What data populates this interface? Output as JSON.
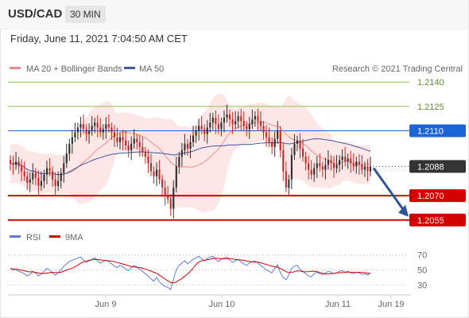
{
  "header": {
    "pair": "USD/CAD",
    "interval": "30 MIN",
    "timestamp": "Friday, June 11, 2021 7:04:50 AM CET"
  },
  "legend": {
    "ma20": "MA 20 + Bollinger Bands",
    "ma50": "MA 50",
    "credit": "Research © 2021 Trading Central"
  },
  "colors": {
    "ma20": "#f08a8a",
    "ma50": "#3b5aa0",
    "support": "#d40000",
    "resistance": "#8cc63f",
    "pivot": "#1a66d9",
    "last": "#333333",
    "candle_up": "#2f2f2f",
    "candle_down": "#c62828",
    "band": "#fde3e3",
    "rsi": "#5b7fd6",
    "rsi_ma": "#d40000",
    "arrow": "#2f5597"
  },
  "chart_data": [
    {
      "type": "candlestick",
      "title": "USD/CAD",
      "interval": "30 MIN",
      "ylim": [
        1.205,
        1.2145
      ],
      "x_ticks": [
        "Jun 9",
        "Jun 10",
        "Jun 11",
        "Jun 19"
      ],
      "close": [
        1.209,
        1.2089,
        1.2091,
        1.2088,
        1.2085,
        1.2082,
        1.2078,
        1.208,
        1.2084,
        1.2081,
        1.2076,
        1.2079,
        1.2083,
        1.2087,
        1.2085,
        1.208,
        1.2076,
        1.2079,
        1.2084,
        1.209,
        1.2096,
        1.2102,
        1.2106,
        1.2109,
        1.2112,
        1.2114,
        1.2111,
        1.2108,
        1.211,
        1.2113,
        1.2115,
        1.2112,
        1.2109,
        1.2111,
        1.2114,
        1.2112,
        1.2109,
        1.2106,
        1.2103,
        1.2106,
        1.2104,
        1.2101,
        1.2098,
        1.2102,
        1.2105,
        1.2103,
        1.21,
        1.2097,
        1.2094,
        1.209,
        1.2085,
        1.2082,
        1.2086,
        1.208,
        1.2075,
        1.207,
        1.2068,
        1.2062,
        1.2075,
        1.2088,
        1.2094,
        1.2098,
        1.2102,
        1.2099,
        1.2103,
        1.2107,
        1.211,
        1.2113,
        1.2111,
        1.2108,
        1.2112,
        1.2115,
        1.2118,
        1.2114,
        1.2111,
        1.2115,
        1.2118,
        1.212,
        1.2117,
        1.2114,
        1.2116,
        1.2119,
        1.2116,
        1.2113,
        1.2111,
        1.2114,
        1.2117,
        1.2119,
        1.2116,
        1.2113,
        1.2109,
        1.2106,
        1.2103,
        1.21,
        1.2105,
        1.211,
        1.2098,
        1.2085,
        1.2075,
        1.208,
        1.2095,
        1.2102,
        1.2104,
        1.2099,
        1.2094,
        1.209,
        1.2086,
        1.2083,
        1.2087,
        1.209,
        1.2088,
        1.2086,
        1.2089,
        1.2092,
        1.209,
        1.2087,
        1.2089,
        1.2092,
        1.2094,
        1.2091,
        1.2093,
        1.209,
        1.2088,
        1.2091,
        1.2089,
        1.2086,
        1.2088,
        1.2085,
        1.2088
      ],
      "series": [
        {
          "name": "MA 20 + Bollinger Bands"
        },
        {
          "name": "MA 50"
        }
      ],
      "levels": [
        {
          "value": 1.214,
          "label": "1.2140",
          "kind": "resistance"
        },
        {
          "value": 1.2125,
          "label": "1.2125",
          "kind": "resistance"
        },
        {
          "value": 1.211,
          "label": "1.2110",
          "kind": "pivot"
        },
        {
          "value": 1.2088,
          "label": "1.2088",
          "kind": "last"
        },
        {
          "value": 1.207,
          "label": "1.2070",
          "kind": "support"
        },
        {
          "value": 1.2055,
          "label": "1.2055",
          "kind": "support"
        }
      ],
      "projection": {
        "from": 1.2088,
        "to": 1.2058,
        "direction": "down"
      },
      "grid": false,
      "legend": "top-left"
    },
    {
      "type": "line",
      "series": [
        {
          "name": "RSI"
        },
        {
          "name": "9MA"
        }
      ],
      "ylim": [
        20,
        80
      ],
      "y_ticks": [
        "70",
        "50",
        "30"
      ],
      "rsi": [
        52,
        50,
        51,
        48,
        47,
        45,
        42,
        44,
        48,
        46,
        42,
        45,
        48,
        52,
        50,
        46,
        43,
        46,
        50,
        55,
        58,
        61,
        63,
        64,
        66,
        67,
        63,
        60,
        62,
        64,
        66,
        62,
        59,
        61,
        63,
        61,
        58,
        55,
        53,
        56,
        54,
        51,
        49,
        53,
        56,
        54,
        51,
        48,
        45,
        42,
        38,
        35,
        40,
        34,
        31,
        28,
        27,
        24,
        38,
        50,
        56,
        59,
        62,
        58,
        61,
        64,
        66,
        68,
        65,
        62,
        65,
        67,
        68,
        64,
        61,
        64,
        66,
        67,
        63,
        60,
        62,
        64,
        61,
        58,
        56,
        59,
        61,
        62,
        59,
        56,
        53,
        50,
        48,
        46,
        52,
        57,
        46,
        40,
        37,
        43,
        52,
        55,
        56,
        51,
        48,
        45,
        42,
        41,
        45,
        47,
        45,
        44,
        46,
        48,
        47,
        45,
        46,
        48,
        49,
        47,
        48,
        46,
        45,
        47,
        46,
        44,
        45,
        43,
        46
      ],
      "grid": false,
      "legend": "top-left"
    }
  ]
}
